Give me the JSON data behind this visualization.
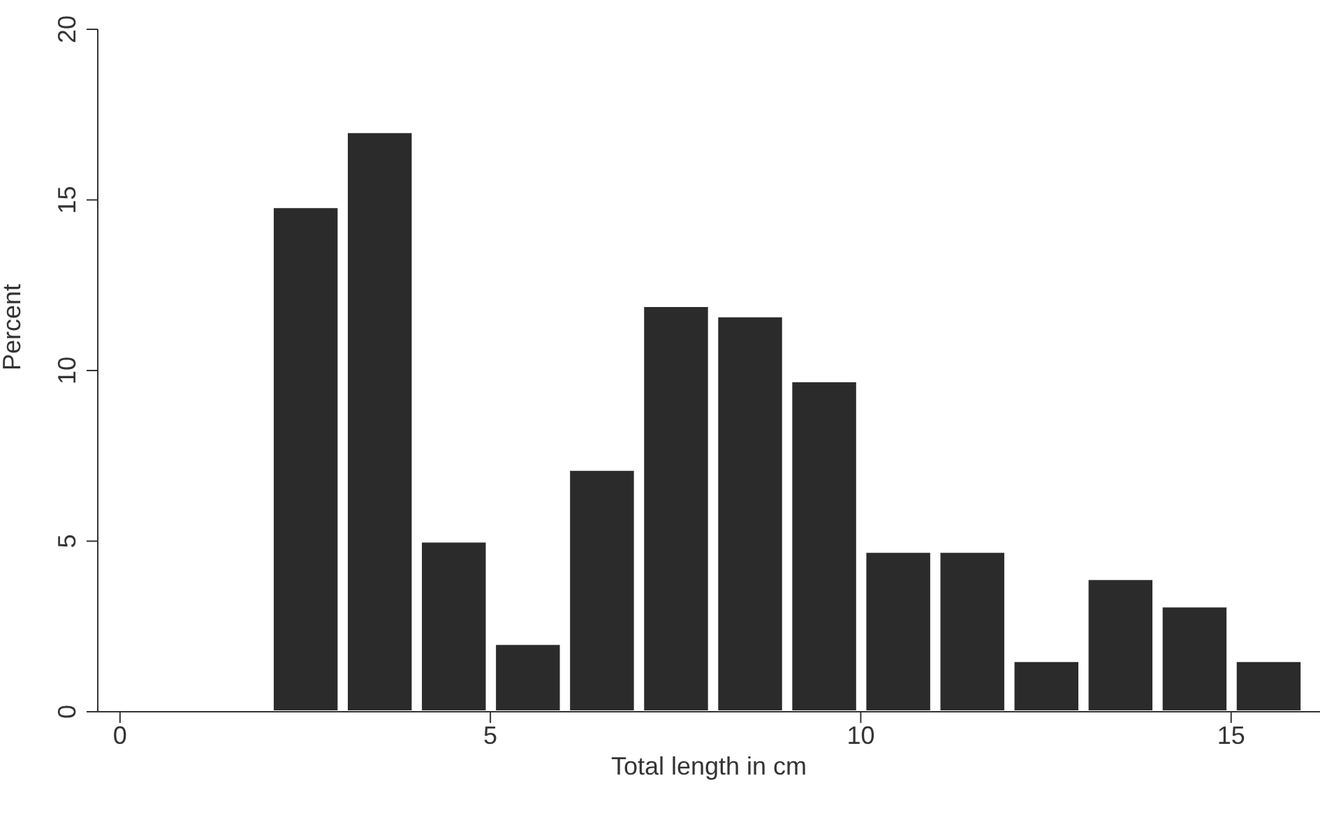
{
  "chart_data": {
    "type": "histogram",
    "xlabel": "Total length in cm",
    "ylabel": "Percent",
    "bins": [
      2,
      3,
      4,
      5,
      6,
      7,
      8,
      9,
      10,
      11,
      12,
      13,
      14,
      15,
      16
    ],
    "values": [
      14.8,
      17.0,
      5.0,
      2.0,
      7.1,
      11.9,
      11.6,
      9.7,
      4.7,
      4.7,
      1.5,
      3.9,
      3.1,
      1.5
    ],
    "color": "#2b2b2b",
    "xlim": [
      -0.3,
      16.2
    ],
    "xticks": [
      0,
      5,
      10,
      15
    ],
    "ylim": [
      0,
      20
    ],
    "yticks": [
      0,
      5,
      10,
      15,
      20
    ],
    "grid": false,
    "legend": false
  }
}
